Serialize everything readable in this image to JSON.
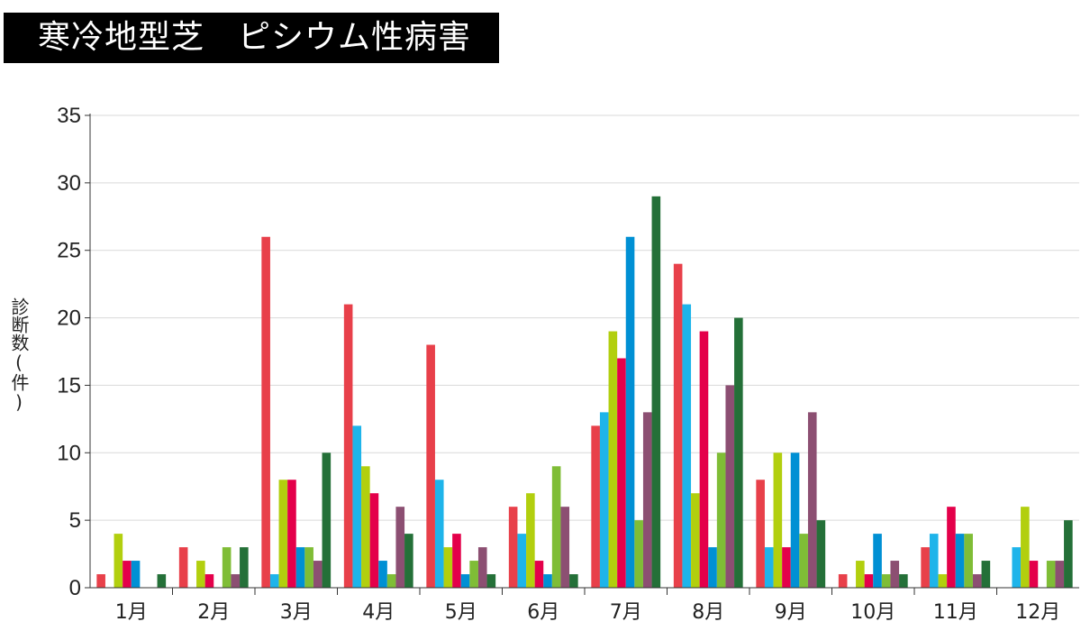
{
  "title": "寒冷地型芝　ピシウム性病害",
  "ylabel": "診断数(件)",
  "chart_data": {
    "type": "bar",
    "title": "寒冷地型芝　ピシウム性病害",
    "ylabel": "診断数(件)",
    "xlabel": "",
    "ylim": [
      0,
      35
    ],
    "yticks": [
      0,
      5,
      10,
      15,
      20,
      25,
      30,
      35
    ],
    "grid": true,
    "legend": "none",
    "categories": [
      "1月",
      "2月",
      "3月",
      "4月",
      "5月",
      "6月",
      "7月",
      "8月",
      "9月",
      "10月",
      "11月",
      "12月"
    ],
    "series": [
      {
        "color": "#e8404a",
        "values": [
          1,
          3,
          26,
          21,
          18,
          6,
          12,
          24,
          8,
          1,
          3,
          0
        ]
      },
      {
        "color": "#1eb4ea",
        "values": [
          0,
          0,
          1,
          12,
          8,
          4,
          13,
          21,
          3,
          0,
          4,
          3
        ]
      },
      {
        "color": "#b2cf0e",
        "values": [
          4,
          2,
          8,
          9,
          3,
          7,
          19,
          7,
          10,
          2,
          1,
          6
        ]
      },
      {
        "color": "#e4004a",
        "values": [
          2,
          1,
          8,
          7,
          4,
          2,
          17,
          19,
          3,
          1,
          6,
          2
        ]
      },
      {
        "color": "#0090d4",
        "values": [
          2,
          0,
          3,
          2,
          1,
          1,
          26,
          3,
          10,
          4,
          4,
          0
        ]
      },
      {
        "color": "#7fbd36",
        "values": [
          0,
          3,
          3,
          1,
          2,
          9,
          5,
          10,
          4,
          1,
          4,
          2
        ]
      },
      {
        "color": "#8c4f72",
        "values": [
          0,
          1,
          2,
          6,
          3,
          6,
          13,
          15,
          13,
          2,
          1,
          2
        ]
      },
      {
        "color": "#247038",
        "values": [
          1,
          3,
          10,
          4,
          1,
          1,
          29,
          20,
          5,
          1,
          2,
          5
        ]
      }
    ]
  }
}
